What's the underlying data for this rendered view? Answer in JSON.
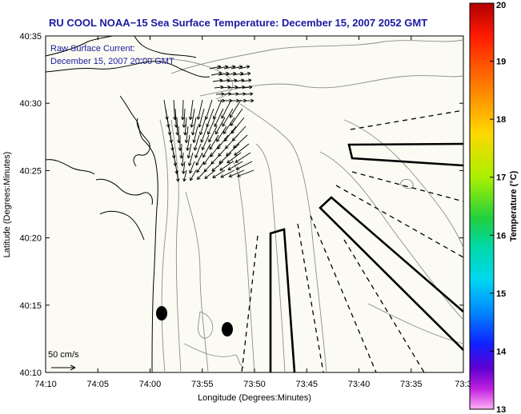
{
  "title": "RU COOL  NOAA−15  Sea Surface Temperature:  December 15, 2007 2052 GMT",
  "current_note": {
    "line1": "Raw Surface Current:",
    "line2": "December 15, 2007 20:00 GMT"
  },
  "scale_label": "50 cm/s",
  "x_axis": {
    "label": "Longitude (Degrees:Minutes)",
    "ticks": [
      "74:10",
      "74:05",
      "74:00",
      "73:55",
      "73:50",
      "73:45",
      "73:40",
      "73:35",
      "73:3"
    ]
  },
  "y_axis": {
    "label": "Latitude (Degrees:Minutes)",
    "ticks": [
      "40:35",
      "40:30",
      "40:25",
      "40:20",
      "40:15",
      "40:10"
    ]
  },
  "colorbar": {
    "label": "Temperature (°C)",
    "ticks": [
      "20",
      "19",
      "18",
      "17",
      "16",
      "15",
      "14",
      "13"
    ],
    "colors": [
      "#c80000",
      "#ff1a00",
      "#ff7a00",
      "#ffd700",
      "#b8f000",
      "#30d030",
      "#00d8a0",
      "#00d8f0",
      "#0090ff",
      "#1428ff",
      "#5000d0",
      "#c020e0",
      "#ff80f0"
    ]
  },
  "map_elements": {
    "coastline": "NJ / NY coastline",
    "bathymetry": "depth contours",
    "current_vectors": "surface current arrows",
    "ship_tracks": "glider / ship tracks",
    "buoys": "mooring markers"
  }
}
